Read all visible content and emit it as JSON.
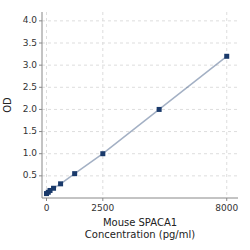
{
  "chart_data": {
    "type": "line",
    "x": [
      0,
      78.13,
      156.25,
      312.5,
      625,
      1250,
      2500,
      5000,
      8000
    ],
    "values": [
      0.1,
      0.13,
      0.17,
      0.22,
      0.32,
      0.55,
      1.0,
      2.0,
      3.2
    ],
    "color": "#1a3a6b",
    "marker": "square",
    "xlabel": "Mouse SPACA1\nConcentration (pg/ml)",
    "ylabel": "OD",
    "xlim": [
      -200,
      8500
    ],
    "ylim": [
      0,
      4.2
    ],
    "xticks": [
      0,
      2500,
      8000
    ],
    "yticks": [
      0.5,
      {
        "value": 1.0,
        "label": "1.0"
      },
      1.5,
      {
        "value": 2.0,
        "label": "2.0"
      },
      2.5,
      {
        "value": 3.0,
        "label": "3.0"
      },
      3.5,
      {
        "value": 4.0,
        "label": "4.0"
      }
    ],
    "grid": true
  }
}
